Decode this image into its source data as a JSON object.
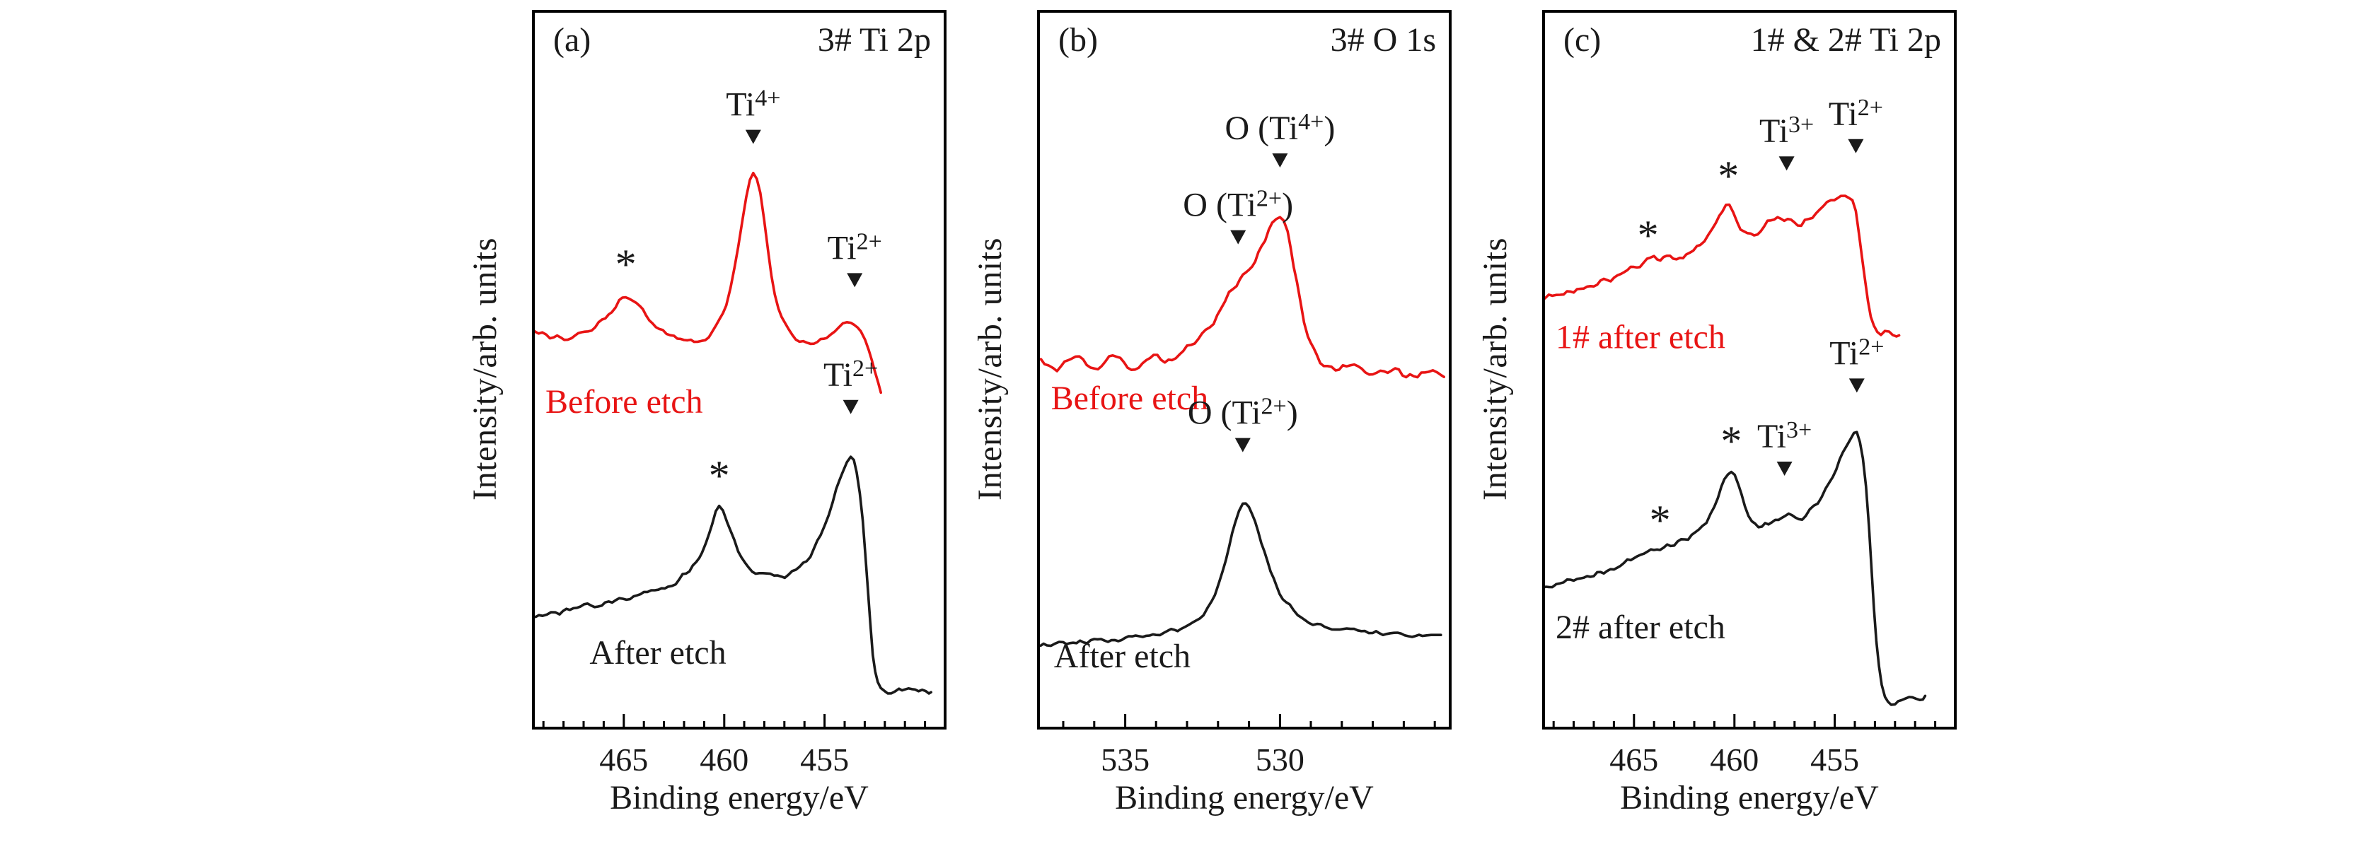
{
  "figure": {
    "background": "#ffffff",
    "frame_color": "#000000",
    "annotation_color": "#1a1a1a",
    "red_series_color": "#e81414"
  },
  "chart_data": [
    {
      "type": "line",
      "tag": "(a)",
      "title": "3# Ti 2p",
      "xlabel": "Binding energy/eV",
      "ylabel": "Intensity/arb. units",
      "x_range": [
        469.5,
        449.0
      ],
      "x_axis_reversed": true,
      "xticks": [
        465,
        460,
        455
      ],
      "minor_tick_step": 1,
      "ylim": [
        0,
        1
      ],
      "grid": false,
      "series": [
        {
          "name": "Before etch",
          "color": "#e81414",
          "noise": 0.004,
          "caption": {
            "text": "Before etch",
            "x": 468.9,
            "y": 0.44,
            "anchor": "start"
          },
          "points": [
            [
              469.5,
              0.555
            ],
            [
              468.5,
              0.545
            ],
            [
              467.6,
              0.545
            ],
            [
              466.6,
              0.558
            ],
            [
              465.6,
              0.582
            ],
            [
              464.9,
              0.602
            ],
            [
              464.2,
              0.588
            ],
            [
              463.4,
              0.56
            ],
            [
              462.5,
              0.545
            ],
            [
              461.5,
              0.54
            ],
            [
              460.6,
              0.552
            ],
            [
              459.9,
              0.592
            ],
            [
              459.3,
              0.672
            ],
            [
              458.9,
              0.742
            ],
            [
              458.55,
              0.775
            ],
            [
              458.2,
              0.745
            ],
            [
              457.8,
              0.66
            ],
            [
              457.3,
              0.585
            ],
            [
              456.6,
              0.548
            ],
            [
              455.7,
              0.536
            ],
            [
              454.9,
              0.545
            ],
            [
              454.3,
              0.558
            ],
            [
              453.7,
              0.566
            ],
            [
              453.2,
              0.552
            ],
            [
              452.8,
              0.525
            ],
            [
              452.5,
              0.495
            ],
            [
              452.2,
              0.468
            ]
          ]
        },
        {
          "name": "After etch",
          "color": "#1a1a1a",
          "noise": 0.005,
          "caption": {
            "text": "After etch",
            "x": 466.7,
            "y": 0.09,
            "anchor": "start"
          },
          "points": [
            [
              469.5,
              0.155
            ],
            [
              468.2,
              0.162
            ],
            [
              466.8,
              0.17
            ],
            [
              465.4,
              0.178
            ],
            [
              464.0,
              0.188
            ],
            [
              462.8,
              0.2
            ],
            [
              461.9,
              0.215
            ],
            [
              461.1,
              0.245
            ],
            [
              460.6,
              0.285
            ],
            [
              460.25,
              0.308
            ],
            [
              459.85,
              0.288
            ],
            [
              459.3,
              0.248
            ],
            [
              458.6,
              0.222
            ],
            [
              457.7,
              0.212
            ],
            [
              456.8,
              0.215
            ],
            [
              455.9,
              0.235
            ],
            [
              455.2,
              0.268
            ],
            [
              454.6,
              0.315
            ],
            [
              454.1,
              0.358
            ],
            [
              453.7,
              0.375
            ],
            [
              453.4,
              0.358
            ],
            [
              453.1,
              0.29
            ],
            [
              452.85,
              0.195
            ],
            [
              452.6,
              0.105
            ],
            [
              452.35,
              0.062
            ],
            [
              452.0,
              0.05
            ],
            [
              451.3,
              0.052
            ],
            [
              450.5,
              0.055
            ],
            [
              449.7,
              0.05
            ]
          ]
        }
      ],
      "annotations": [
        {
          "kind": "star",
          "x": 464.9,
          "y": 0.655,
          "text": "*",
          "series": "Before etch"
        },
        {
          "kind": "peak",
          "x": 458.55,
          "y": 0.815,
          "label": "Ti^{4+}",
          "series": "Before etch"
        },
        {
          "kind": "peak",
          "x": 453.5,
          "y": 0.615,
          "label": "Ti^{2+}",
          "series": "Before etch"
        },
        {
          "kind": "star",
          "x": 460.25,
          "y": 0.36,
          "text": "*",
          "series": "After etch"
        },
        {
          "kind": "peak",
          "x": 453.7,
          "y": 0.438,
          "label": "Ti^{2+}",
          "series": "After etch"
        }
      ]
    },
    {
      "type": "line",
      "tag": "(b)",
      "title": "3# O 1s",
      "xlabel": "Binding energy/eV",
      "ylabel": "Intensity/arb. units",
      "x_range": [
        537.8,
        524.5
      ],
      "x_axis_reversed": true,
      "xticks": [
        535,
        530
      ],
      "minor_tick_step": 1,
      "ylim": [
        0,
        1
      ],
      "grid": false,
      "series": [
        {
          "name": "Before etch",
          "color": "#e81414",
          "noise": 0.006,
          "caption": {
            "text": "Before etch",
            "x": 537.4,
            "y": 0.445,
            "anchor": "start"
          },
          "points": [
            [
              537.8,
              0.515
            ],
            [
              537.2,
              0.502
            ],
            [
              536.6,
              0.522
            ],
            [
              536.0,
              0.5
            ],
            [
              535.4,
              0.518
            ],
            [
              534.8,
              0.503
            ],
            [
              534.2,
              0.518
            ],
            [
              533.6,
              0.512
            ],
            [
              533.0,
              0.528
            ],
            [
              532.4,
              0.552
            ],
            [
              531.9,
              0.585
            ],
            [
              531.4,
              0.622
            ],
            [
              531.0,
              0.642
            ],
            [
              530.6,
              0.672
            ],
            [
              530.25,
              0.705
            ],
            [
              530.0,
              0.715
            ],
            [
              529.75,
              0.69
            ],
            [
              529.45,
              0.618
            ],
            [
              529.1,
              0.548
            ],
            [
              528.7,
              0.512
            ],
            [
              528.2,
              0.5
            ],
            [
              527.6,
              0.505
            ],
            [
              527.0,
              0.492
            ],
            [
              526.4,
              0.5
            ],
            [
              525.8,
              0.49
            ],
            [
              525.2,
              0.496
            ],
            [
              524.7,
              0.49
            ]
          ]
        },
        {
          "name": "After etch",
          "color": "#1a1a1a",
          "noise": 0.004,
          "caption": {
            "text": "After etch",
            "x": 537.3,
            "y": 0.085,
            "anchor": "start"
          },
          "points": [
            [
              537.8,
              0.115
            ],
            [
              537.0,
              0.118
            ],
            [
              536.0,
              0.121
            ],
            [
              535.0,
              0.126
            ],
            [
              534.0,
              0.131
            ],
            [
              533.2,
              0.14
            ],
            [
              532.6,
              0.155
            ],
            [
              532.1,
              0.186
            ],
            [
              531.75,
              0.232
            ],
            [
              531.45,
              0.285
            ],
            [
              531.2,
              0.315
            ],
            [
              530.9,
              0.298
            ],
            [
              530.6,
              0.258
            ],
            [
              530.2,
              0.208
            ],
            [
              529.8,
              0.175
            ],
            [
              529.3,
              0.155
            ],
            [
              528.8,
              0.145
            ],
            [
              528.2,
              0.14
            ],
            [
              527.6,
              0.136
            ],
            [
              527.0,
              0.133
            ],
            [
              526.2,
              0.13
            ],
            [
              525.4,
              0.128
            ],
            [
              524.8,
              0.13
            ]
          ]
        }
      ],
      "annotations": [
        {
          "kind": "peak",
          "x": 531.35,
          "y": 0.675,
          "label": "O (Ti^{2+})",
          "series": "Before etch"
        },
        {
          "kind": "peak",
          "x": 530.0,
          "y": 0.782,
          "label": "O (Ti^{4+})",
          "series": "Before etch"
        },
        {
          "kind": "peak",
          "x": 531.2,
          "y": 0.385,
          "label": "O (Ti^{2+})",
          "series": "After etch"
        }
      ]
    },
    {
      "type": "line",
      "tag": "(c)",
      "title": "1# & 2# Ti 2p",
      "xlabel": "Binding energy/eV",
      "ylabel": "Intensity/arb. units",
      "x_range": [
        469.5,
        449.0
      ],
      "x_axis_reversed": true,
      "xticks": [
        465,
        460,
        455
      ],
      "minor_tick_step": 1,
      "ylim": [
        0,
        1
      ],
      "grid": false,
      "series": [
        {
          "name": "1# after etch",
          "color": "#e81414",
          "noise": 0.006,
          "caption": {
            "text": "1# after etch",
            "x": 468.9,
            "y": 0.53,
            "anchor": "start"
          },
          "points": [
            [
              469.5,
              0.598
            ],
            [
              468.5,
              0.604
            ],
            [
              467.5,
              0.614
            ],
            [
              466.5,
              0.624
            ],
            [
              465.5,
              0.636
            ],
            [
              464.7,
              0.648
            ],
            [
              464.0,
              0.654
            ],
            [
              463.2,
              0.654
            ],
            [
              462.4,
              0.662
            ],
            [
              461.7,
              0.676
            ],
            [
              461.1,
              0.7
            ],
            [
              460.6,
              0.722
            ],
            [
              460.25,
              0.73
            ],
            [
              459.85,
              0.706
            ],
            [
              459.35,
              0.686
            ],
            [
              458.85,
              0.69
            ],
            [
              458.35,
              0.704
            ],
            [
              457.85,
              0.714
            ],
            [
              457.35,
              0.708
            ],
            [
              456.85,
              0.7
            ],
            [
              456.3,
              0.71
            ],
            [
              455.75,
              0.722
            ],
            [
              455.2,
              0.734
            ],
            [
              454.7,
              0.74
            ],
            [
              454.3,
              0.738
            ],
            [
              453.95,
              0.72
            ],
            [
              453.65,
              0.66
            ],
            [
              453.35,
              0.595
            ],
            [
              453.05,
              0.565
            ],
            [
              452.7,
              0.552
            ],
            [
              452.3,
              0.553
            ],
            [
              451.8,
              0.548
            ]
          ]
        },
        {
          "name": "2# after etch",
          "color": "#1a1a1a",
          "noise": 0.005,
          "caption": {
            "text": "2# after etch",
            "x": 468.9,
            "y": 0.125,
            "anchor": "start"
          },
          "points": [
            [
              469.5,
              0.196
            ],
            [
              468.5,
              0.202
            ],
            [
              467.5,
              0.21
            ],
            [
              466.5,
              0.22
            ],
            [
              465.5,
              0.23
            ],
            [
              464.5,
              0.243
            ],
            [
              463.7,
              0.253
            ],
            [
              463.0,
              0.256
            ],
            [
              462.3,
              0.266
            ],
            [
              461.6,
              0.282
            ],
            [
              461.0,
              0.31
            ],
            [
              460.5,
              0.344
            ],
            [
              460.15,
              0.358
            ],
            [
              459.8,
              0.336
            ],
            [
              459.3,
              0.3
            ],
            [
              458.8,
              0.282
            ],
            [
              458.3,
              0.286
            ],
            [
              457.8,
              0.292
            ],
            [
              457.3,
              0.296
            ],
            [
              456.8,
              0.292
            ],
            [
              456.25,
              0.302
            ],
            [
              455.65,
              0.322
            ],
            [
              455.1,
              0.352
            ],
            [
              454.6,
              0.386
            ],
            [
              454.2,
              0.406
            ],
            [
              453.9,
              0.41
            ],
            [
              453.6,
              0.375
            ],
            [
              453.3,
              0.28
            ],
            [
              453.05,
              0.17
            ],
            [
              452.8,
              0.085
            ],
            [
              452.5,
              0.042
            ],
            [
              452.0,
              0.035
            ],
            [
              451.3,
              0.04
            ],
            [
              450.5,
              0.045
            ]
          ]
        }
      ],
      "annotations": [
        {
          "kind": "star",
          "x": 464.3,
          "y": 0.695,
          "text": "*",
          "series": "1# after etch"
        },
        {
          "kind": "star",
          "x": 460.3,
          "y": 0.778,
          "text": "*",
          "series": "1# after etch"
        },
        {
          "kind": "peak",
          "x": 457.4,
          "y": 0.778,
          "label": "Ti^{3+}",
          "series": "1# after etch"
        },
        {
          "kind": "peak",
          "x": 453.95,
          "y": 0.802,
          "label": "Ti^{2+}",
          "series": "1# after etch"
        },
        {
          "kind": "star",
          "x": 463.7,
          "y": 0.298,
          "text": "*",
          "series": "2# after etch"
        },
        {
          "kind": "star",
          "x": 460.15,
          "y": 0.408,
          "text": "*",
          "series": "2# after etch"
        },
        {
          "kind": "peak",
          "x": 457.5,
          "y": 0.352,
          "label": "Ti^{3+}",
          "series": "2# after etch"
        },
        {
          "kind": "peak",
          "x": 453.9,
          "y": 0.468,
          "label": "Ti^{2+}",
          "series": "2# after etch"
        }
      ]
    }
  ]
}
